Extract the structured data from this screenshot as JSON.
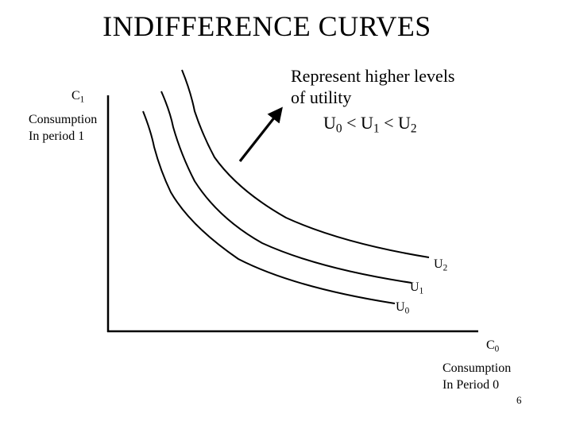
{
  "slide": {
    "title": "INDIFFERENCE CURVES",
    "page_number": "6"
  },
  "axes": {
    "y_symbol": "C",
    "y_symbol_sub": "1",
    "y_label_line1": "Consumption",
    "y_label_line2": "In period 1",
    "x_symbol": "C",
    "x_symbol_sub": "0",
    "x_label_line1": "Consumption",
    "x_label_line2": "In Period 0"
  },
  "annotation": {
    "line1": "Represent higher levels",
    "line2": "of utility",
    "inequality": {
      "u0": "U",
      "u0_sub": "0",
      "lt1": " < ",
      "u1": "U",
      "u1_sub": "1",
      "lt2": " < ",
      "u2": "U",
      "u2_sub": "2"
    }
  },
  "curves": [
    {
      "symbol": "U",
      "sub": "0"
    },
    {
      "symbol": "U",
      "sub": "1"
    },
    {
      "symbol": "U",
      "sub": "2"
    }
  ],
  "colors": {
    "ink": "#000000",
    "background": "#ffffff"
  }
}
